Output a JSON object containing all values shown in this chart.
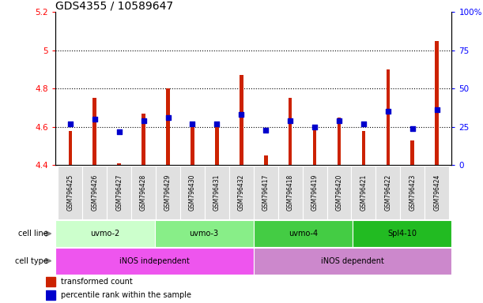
{
  "title": "GDS4355 / 10589647",
  "samples": [
    "GSM796425",
    "GSM796426",
    "GSM796427",
    "GSM796428",
    "GSM796429",
    "GSM796430",
    "GSM796431",
    "GSM796432",
    "GSM796417",
    "GSM796418",
    "GSM796419",
    "GSM796420",
    "GSM796421",
    "GSM796422",
    "GSM796423",
    "GSM796424"
  ],
  "transformed_count": [
    4.58,
    4.75,
    4.41,
    4.67,
    4.8,
    4.63,
    4.63,
    4.87,
    4.45,
    4.75,
    4.6,
    4.65,
    4.58,
    4.9,
    4.53,
    5.05
  ],
  "percentile_rank": [
    27,
    30,
    22,
    29,
    31,
    27,
    27,
    33,
    23,
    29,
    25,
    29,
    27,
    35,
    24,
    36
  ],
  "ylim_left": [
    4.4,
    5.2
  ],
  "ylim_right": [
    0,
    100
  ],
  "yticks_left": [
    4.4,
    4.6,
    4.8,
    5.0,
    5.2
  ],
  "yticks_right": [
    0,
    25,
    50,
    75,
    100
  ],
  "ytick_labels_left": [
    "4.4",
    "4.6",
    "4.8",
    "5",
    "5.2"
  ],
  "ytick_labels_right": [
    "0",
    "25",
    "50",
    "75",
    "100%"
  ],
  "hlines": [
    4.6,
    4.8,
    5.0
  ],
  "bar_color": "#cc2200",
  "dot_color": "#0000cc",
  "cell_line_groups": [
    {
      "label": "uvmo-2",
      "start": 0,
      "end": 3,
      "color": "#ccffcc"
    },
    {
      "label": "uvmo-3",
      "start": 4,
      "end": 7,
      "color": "#88ee88"
    },
    {
      "label": "uvmo-4",
      "start": 8,
      "end": 11,
      "color": "#44cc44"
    },
    {
      "label": "Spl4-10",
      "start": 12,
      "end": 15,
      "color": "#22bb22"
    }
  ],
  "cell_type_groups": [
    {
      "label": "iNOS independent",
      "start": 0,
      "end": 7,
      "color": "#ee55ee"
    },
    {
      "label": "iNOS dependent",
      "start": 8,
      "end": 15,
      "color": "#cc88cc"
    }
  ],
  "legend_items": [
    {
      "label": "transformed count",
      "color": "#cc2200"
    },
    {
      "label": "percentile rank within the sample",
      "color": "#0000cc"
    }
  ],
  "background_color": "#ffffff",
  "bar_width": 0.15,
  "dot_size": 25,
  "title_fontsize": 10,
  "label_fontsize": 7,
  "tick_fontsize": 7.5
}
